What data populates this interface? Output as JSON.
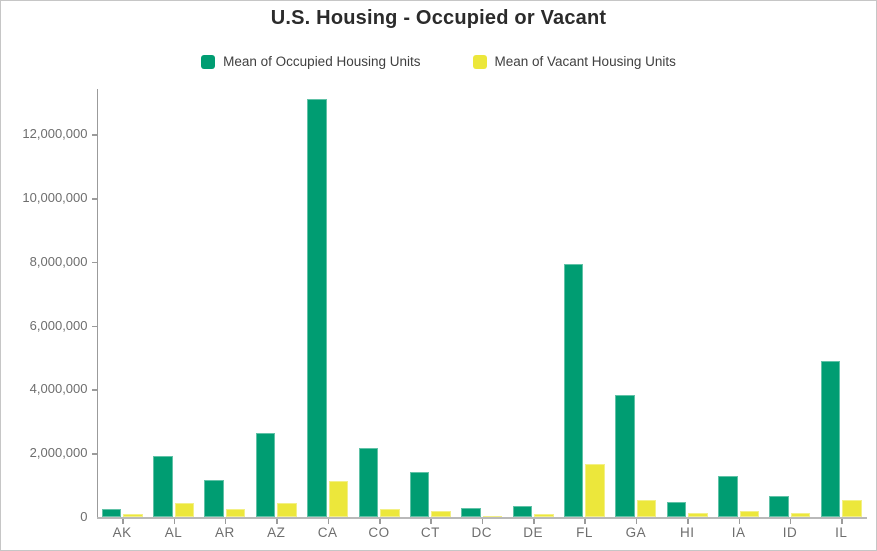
{
  "title": "U.S. Housing - Occupied or Vacant",
  "legend": {
    "items": [
      {
        "label": "Mean of Occupied Housing Units",
        "color": "#009d72"
      },
      {
        "label": "Mean of Vacant Housing Units",
        "color": "#ece73b"
      }
    ]
  },
  "colors": {
    "occupied_green": "#009d72",
    "vacant_yellow": "#ece73b",
    "axis_line": "#9b9b9b",
    "axis_label": "#6e6e6e",
    "title_text": "#2b2b2b",
    "border": "#c6c6c6"
  },
  "chart_data": {
    "type": "bar",
    "title": "U.S. Housing - Occupied or Vacant",
    "xlabel": "",
    "ylabel": "",
    "grid": false,
    "legend_position": "top",
    "categories": [
      "AK",
      "AL",
      "AR",
      "AZ",
      "CA",
      "CO",
      "CT",
      "DC",
      "DE",
      "FL",
      "GA",
      "HI",
      "IA",
      "ID",
      "IL"
    ],
    "series": [
      {
        "name": "Mean of Occupied Housing Units",
        "color": "#009d72",
        "values": [
          260000,
          1900000,
          1170000,
          2640000,
          13100000,
          2150000,
          1400000,
          290000,
          360000,
          7930000,
          3840000,
          470000,
          1280000,
          650000,
          4880000
        ]
      },
      {
        "name": "Mean of Vacant Housing Units",
        "color": "#ece73b",
        "values": [
          80000,
          430000,
          240000,
          430000,
          1120000,
          250000,
          180000,
          40000,
          100000,
          1650000,
          520000,
          120000,
          180000,
          110000,
          520000
        ]
      }
    ],
    "ylim": [
      0,
      13200000
    ],
    "yticks": [
      0,
      2000000,
      4000000,
      6000000,
      8000000,
      10000000,
      12000000
    ],
    "ytick_labels": [
      "0",
      "2,000,000",
      "4,000,000",
      "6,000,000",
      "8,000,000",
      "10,000,000",
      "12,000,000"
    ]
  }
}
